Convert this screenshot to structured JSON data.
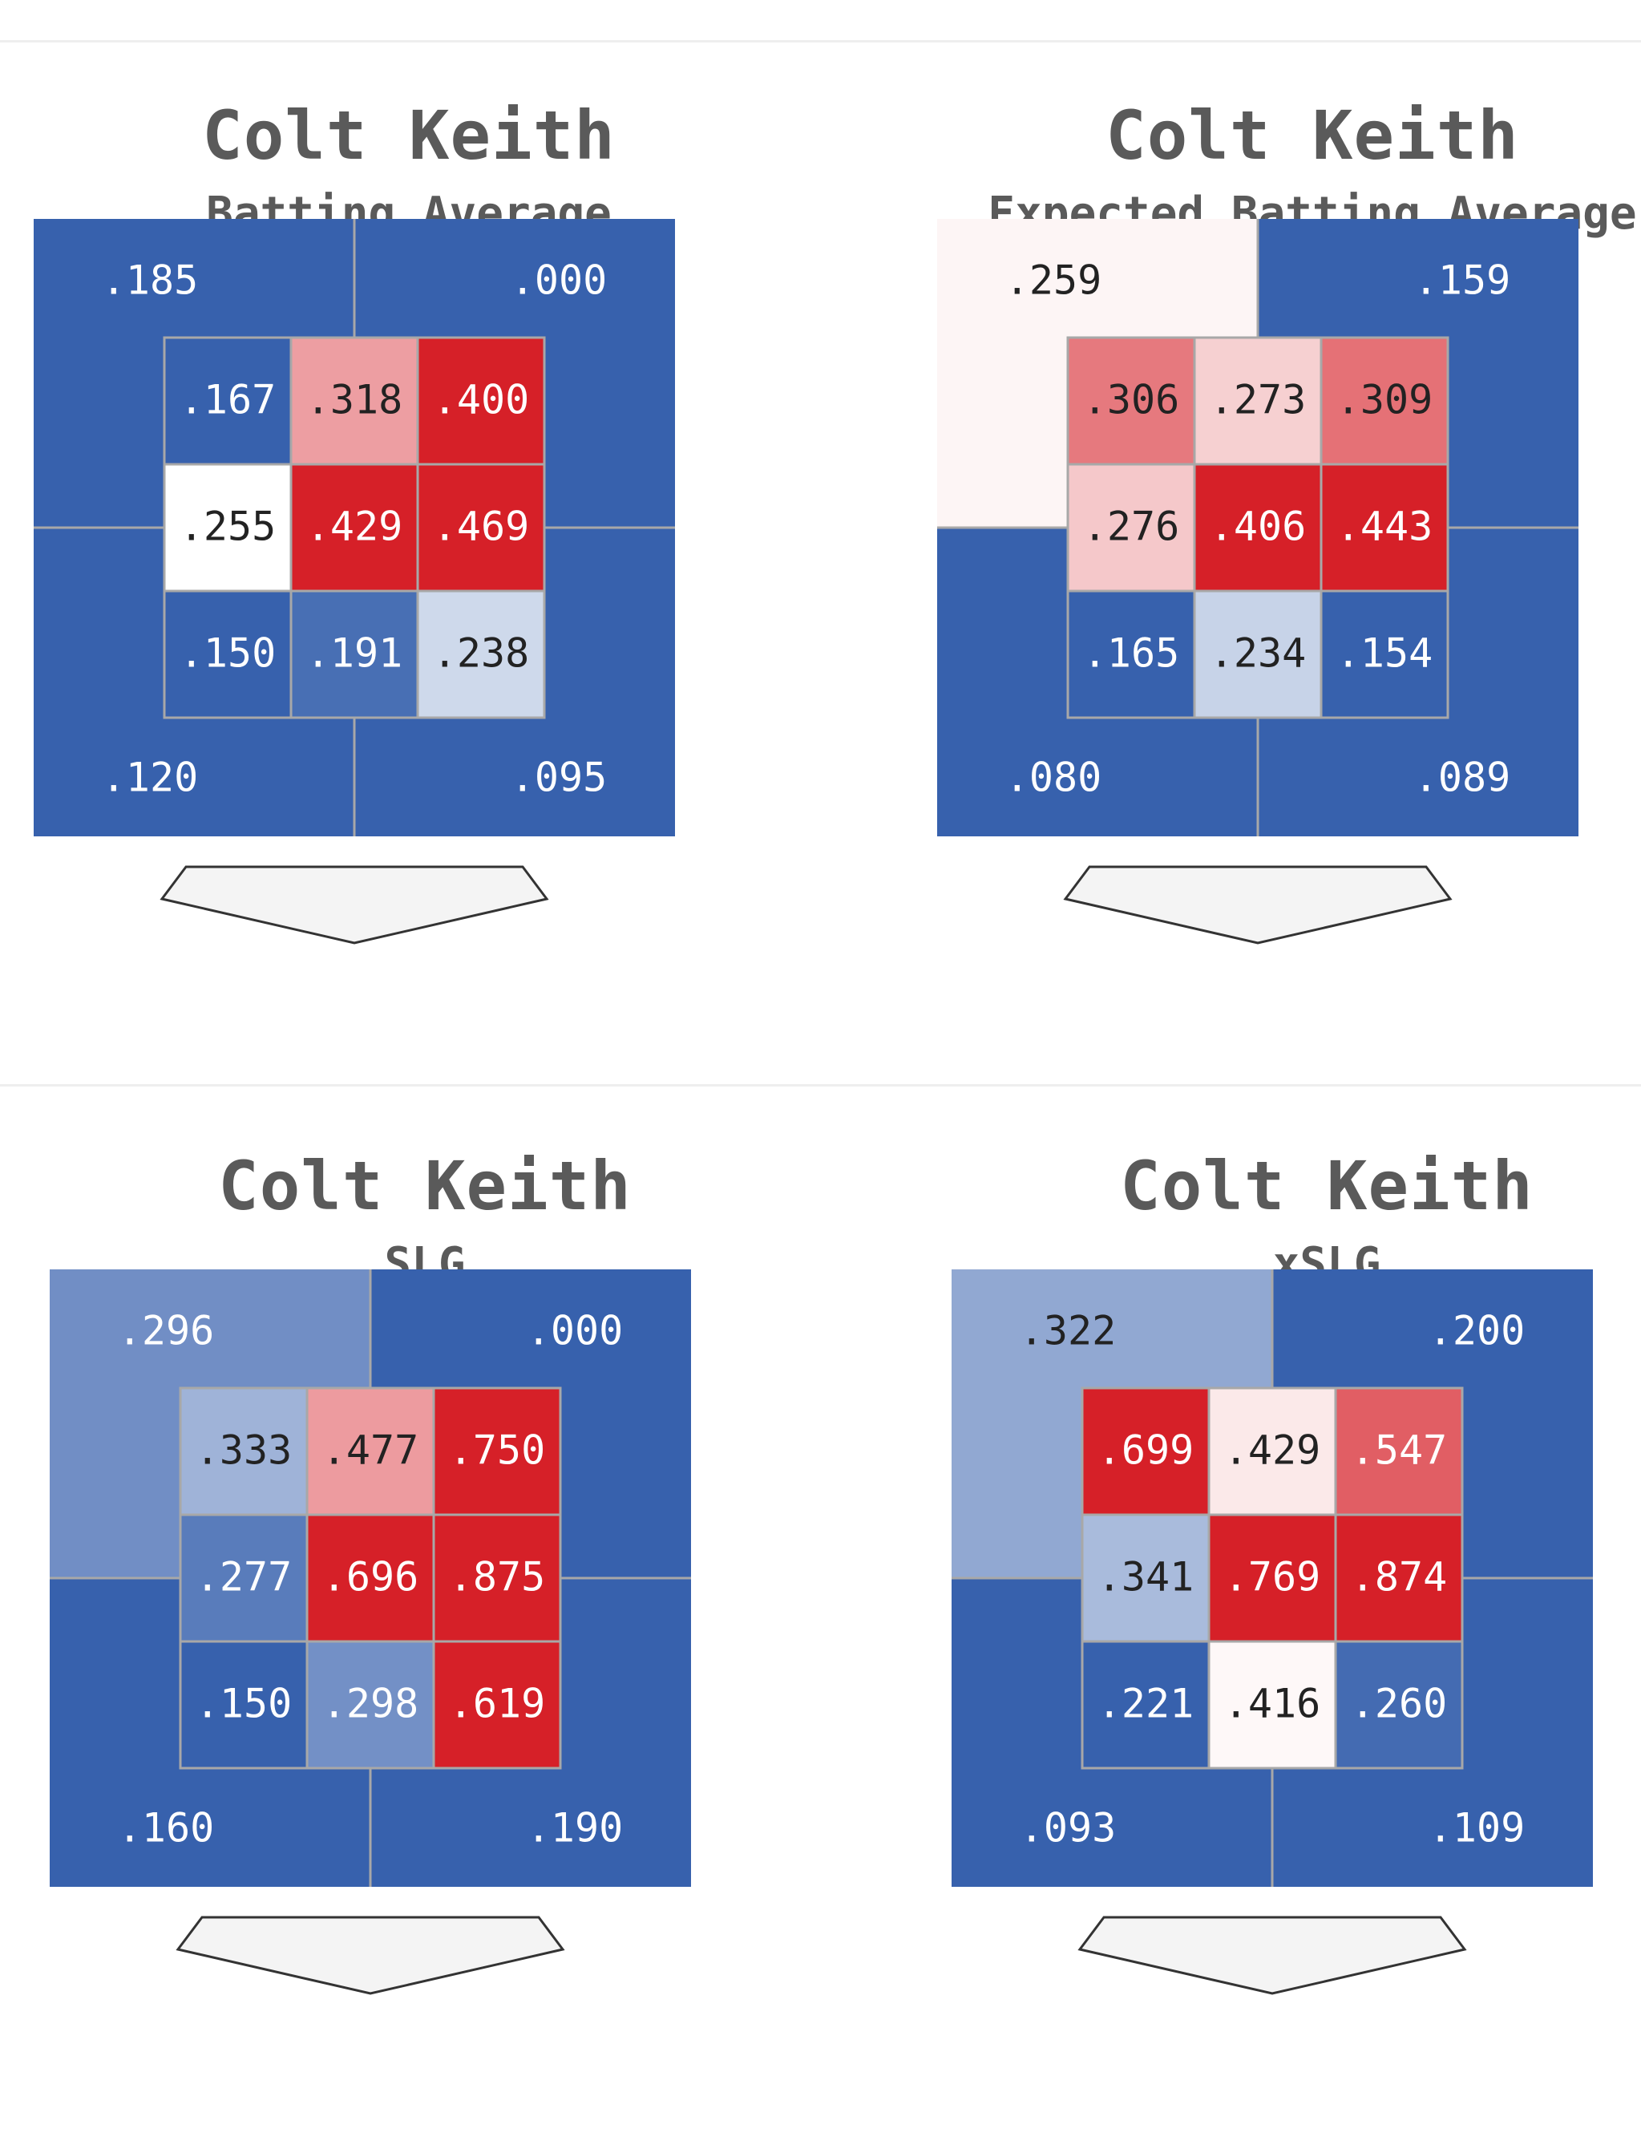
{
  "colors": {
    "low": "#3761ad",
    "mid": "#ffffff",
    "high": "#d62028",
    "grid_line": "#a8a8a8",
    "text_light": "#ffffff",
    "text_dark": "#222222",
    "title": "#5a5a5a",
    "plate_fill": "#f4f4f4",
    "plate_stroke": "#333333"
  },
  "chart_data": [
    {
      "type": "heatmap",
      "title": "Colt Keith",
      "subtitle": "Batting Average",
      "labels": {
        "outer": [
          ".185",
          ".000",
          ".120",
          ".095"
        ],
        "inner": [
          [
            ".167",
            ".318",
            ".400"
          ],
          [
            ".255",
            ".429",
            ".469"
          ],
          [
            ".150",
            ".191",
            ".238"
          ]
        ]
      },
      "values": {
        "outer": [
          0.185,
          0.0,
          0.12,
          0.095
        ],
        "inner": [
          [
            0.167,
            0.318,
            0.4
          ],
          [
            0.255,
            0.429,
            0.469
          ],
          [
            0.15,
            0.191,
            0.238
          ]
        ]
      },
      "scale": {
        "low": 0.185,
        "mid": 0.255,
        "high": 0.4
      }
    },
    {
      "type": "heatmap",
      "title": "Colt Keith",
      "subtitle": "Expected Batting Average",
      "labels": {
        "outer": [
          ".259",
          ".159",
          ".080",
          ".089"
        ],
        "inner": [
          [
            ".306",
            ".273",
            ".309"
          ],
          [
            ".276",
            ".406",
            ".443"
          ],
          [
            ".165",
            ".234",
            ".154"
          ]
        ]
      },
      "values": {
        "outer": [
          0.259,
          0.159,
          0.08,
          0.089
        ],
        "inner": [
          [
            0.306,
            0.273,
            0.309
          ],
          [
            0.276,
            0.406,
            0.443
          ],
          [
            0.165,
            0.234,
            0.154
          ]
        ]
      },
      "scale": {
        "low": 0.18,
        "mid": 0.255,
        "high": 0.34
      }
    },
    {
      "type": "heatmap",
      "title": "Colt Keith",
      "subtitle": "SLG",
      "labels": {
        "outer": [
          ".296",
          ".000",
          ".160",
          ".190"
        ],
        "inner": [
          [
            ".333",
            ".477",
            ".750"
          ],
          [
            ".277",
            ".696",
            ".875"
          ],
          [
            ".150",
            ".298",
            ".619"
          ]
        ]
      },
      "values": {
        "outer": [
          0.296,
          0.0,
          0.16,
          0.19
        ],
        "inner": [
          [
            0.333,
            0.477,
            0.75
          ],
          [
            0.277,
            0.696,
            0.875
          ],
          [
            0.15,
            0.298,
            0.619
          ]
        ]
      },
      "scale": {
        "low": 0.25,
        "mid": 0.41,
        "high": 0.56
      }
    },
    {
      "type": "heatmap",
      "title": "Colt Keith",
      "subtitle": "xSLG",
      "labels": {
        "outer": [
          ".322",
          ".200",
          ".093",
          ".109"
        ],
        "inner": [
          [
            ".699",
            ".429",
            ".547"
          ],
          [
            ".341",
            ".769",
            ".874"
          ],
          [
            ".221",
            ".416",
            ".260"
          ]
        ]
      },
      "values": {
        "outer": [
          0.322,
          0.2,
          0.093,
          0.109
        ],
        "inner": [
          [
            0.699,
            0.429,
            0.547
          ],
          [
            0.341,
            0.769,
            0.874
          ],
          [
            0.221,
            0.416,
            0.26
          ]
        ]
      },
      "scale": {
        "low": 0.25,
        "mid": 0.41,
        "high": 0.6
      }
    }
  ]
}
